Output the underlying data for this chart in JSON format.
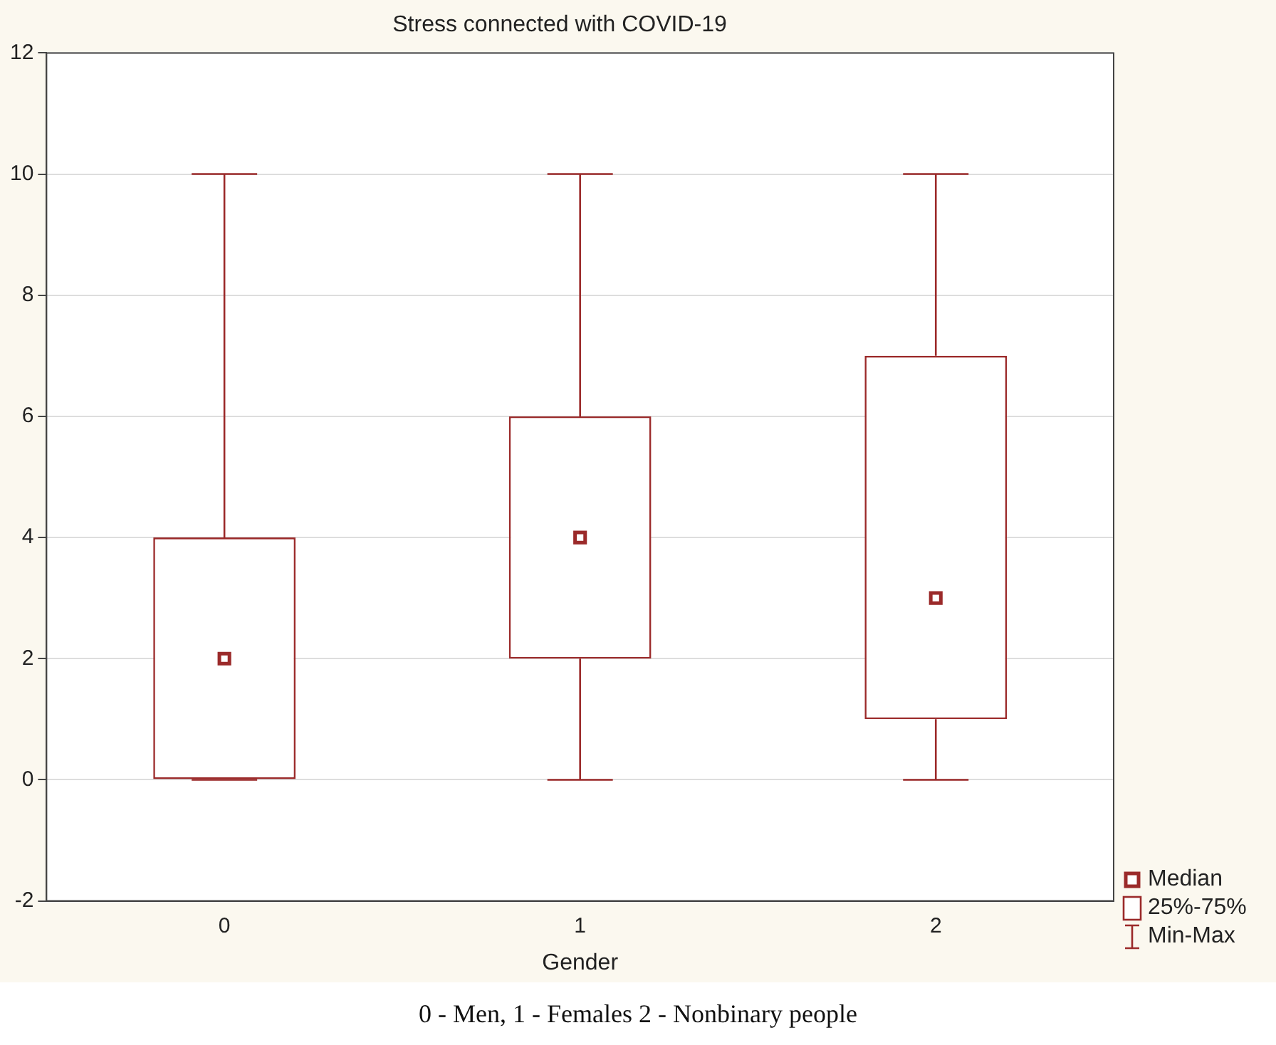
{
  "chart_data": {
    "type": "box",
    "title": "Stress connected with COVID-19",
    "xlabel": "Gender",
    "categories": [
      "0",
      "1",
      "2"
    ],
    "series": [
      {
        "color": "#9b2a2a",
        "boxes": [
          {
            "low": 0,
            "q1": 0,
            "median": 2,
            "q3": 4,
            "high": 10
          },
          {
            "low": 0,
            "q1": 2,
            "median": 4,
            "q3": 6,
            "high": 10
          },
          {
            "low": 0,
            "q1": 1,
            "median": 3,
            "q3": 7,
            "high": 10
          }
        ]
      }
    ],
    "ylim": [
      -2,
      12
    ],
    "yticks": [
      -2,
      0,
      2,
      4,
      6,
      8,
      10,
      12
    ],
    "grid": "y",
    "annotations": [
      "Median",
      "25%-75%",
      "Min-Max",
      "0 - Men, 1 - Females 2 - Nonbinary people"
    ]
  }
}
